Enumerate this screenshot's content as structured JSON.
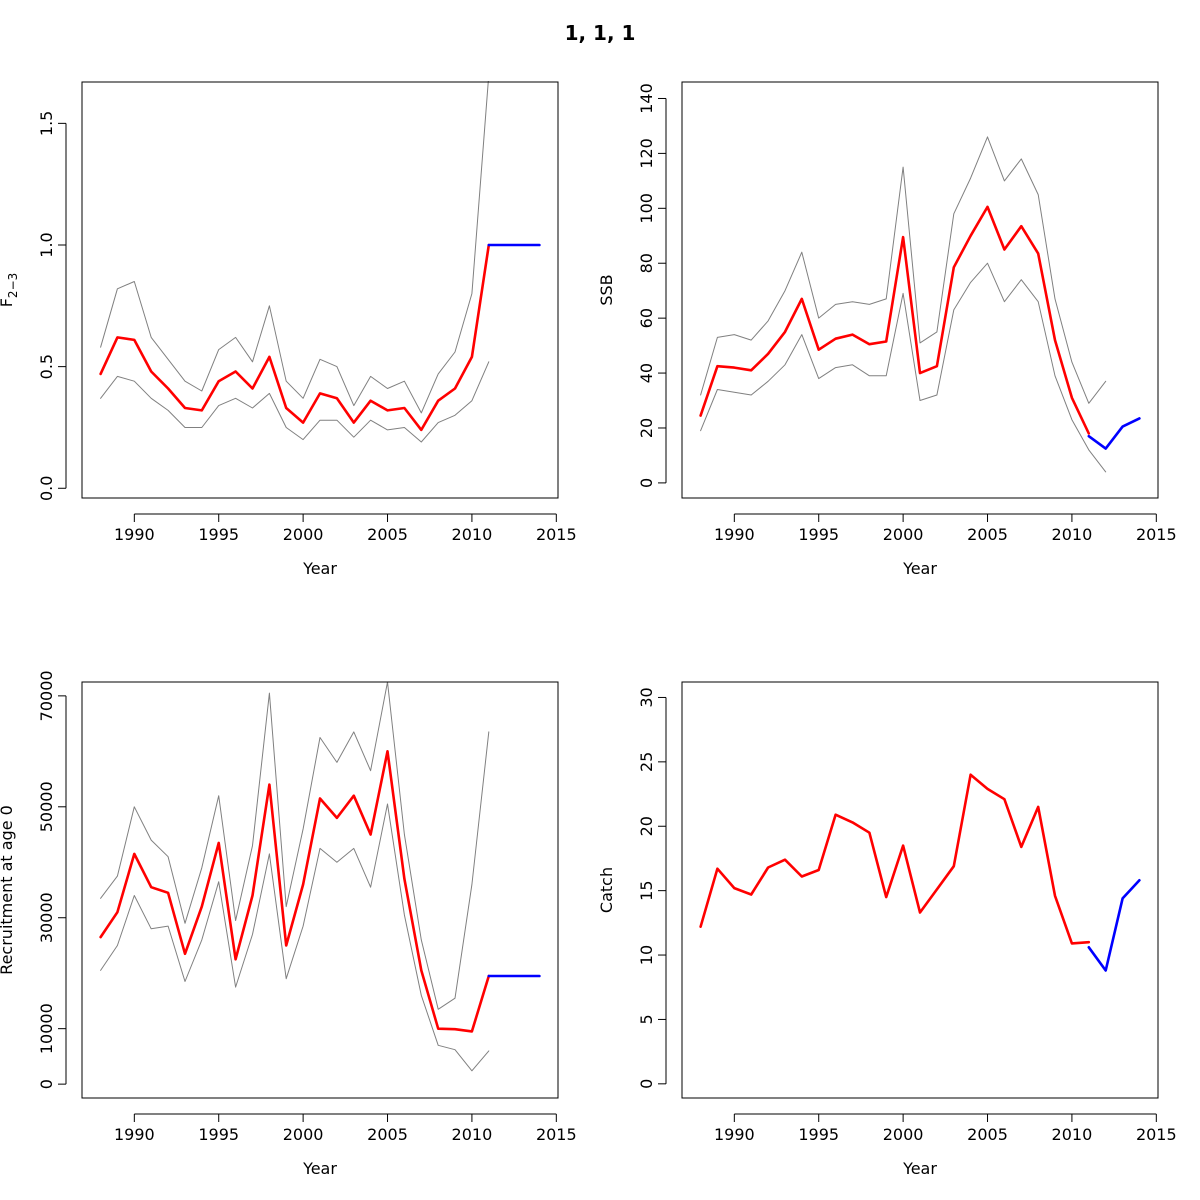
{
  "figure": {
    "title": "1, 1, 1"
  },
  "colors": {
    "estimate": "#ff0000",
    "forecast": "#0000ff",
    "confidence": "#808080",
    "axis": "#000000"
  },
  "chart_data": [
    {
      "id": "fbar",
      "type": "line",
      "xlabel": "Year",
      "ylabel": "F̄2-3",
      "ylabel_main": "F",
      "ylabel_sub": "2−3",
      "xlim": [
        1986.9,
        2015.1
      ],
      "ylim": [
        -0.04,
        1.67
      ],
      "xticks": [
        1990,
        1995,
        2000,
        2005,
        2010,
        2015
      ],
      "yticks": [
        0.0,
        0.5,
        1.0,
        1.5
      ],
      "ytick_labels": [
        "0.0",
        "0.5",
        "1.0",
        "1.5"
      ],
      "series": [
        {
          "role": "upper",
          "x": [
            1988,
            1989,
            1990,
            1991,
            1992,
            1993,
            1994,
            1995,
            1996,
            1997,
            1998,
            1999,
            2000,
            2001,
            2002,
            2003,
            2004,
            2005,
            2006,
            2007,
            2008,
            2009,
            2010,
            2011
          ],
          "values": [
            0.58,
            0.82,
            0.85,
            0.62,
            0.53,
            0.44,
            0.4,
            0.57,
            0.62,
            0.52,
            0.75,
            0.44,
            0.37,
            0.53,
            0.5,
            0.34,
            0.46,
            0.41,
            0.44,
            0.31,
            0.47,
            0.56,
            0.8,
            1.7
          ]
        },
        {
          "role": "lower",
          "x": [
            1988,
            1989,
            1990,
            1991,
            1992,
            1993,
            1994,
            1995,
            1996,
            1997,
            1998,
            1999,
            2000,
            2001,
            2002,
            2003,
            2004,
            2005,
            2006,
            2007,
            2008,
            2009,
            2010,
            2011
          ],
          "values": [
            0.37,
            0.46,
            0.44,
            0.37,
            0.32,
            0.25,
            0.25,
            0.34,
            0.37,
            0.33,
            0.39,
            0.25,
            0.2,
            0.28,
            0.28,
            0.21,
            0.28,
            0.24,
            0.25,
            0.19,
            0.27,
            0.3,
            0.36,
            0.52
          ]
        },
        {
          "role": "estimate",
          "x": [
            1988,
            1989,
            1990,
            1991,
            1992,
            1993,
            1994,
            1995,
            1996,
            1997,
            1998,
            1999,
            2000,
            2001,
            2002,
            2003,
            2004,
            2005,
            2006,
            2007,
            2008,
            2009,
            2010,
            2011
          ],
          "values": [
            0.47,
            0.62,
            0.61,
            0.48,
            0.41,
            0.33,
            0.32,
            0.44,
            0.48,
            0.41,
            0.54,
            0.33,
            0.27,
            0.39,
            0.37,
            0.27,
            0.36,
            0.32,
            0.33,
            0.24,
            0.36,
            0.41,
            0.54,
            1.0
          ]
        },
        {
          "role": "forecast",
          "x": [
            2011,
            2012,
            2013,
            2014
          ],
          "values": [
            1.0,
            1.0,
            1.0,
            1.0
          ]
        }
      ]
    },
    {
      "id": "ssb",
      "type": "line",
      "xlabel": "Year",
      "ylabel": "SSB",
      "xlim": [
        1986.9,
        2015.1
      ],
      "ylim": [
        -5.5,
        146
      ],
      "xticks": [
        1990,
        1995,
        2000,
        2005,
        2010,
        2015
      ],
      "yticks": [
        0,
        20,
        40,
        60,
        80,
        100,
        120,
        140
      ],
      "ytick_labels": [
        "0",
        "20",
        "40",
        "60",
        "80",
        "100",
        "120",
        "140"
      ],
      "series": [
        {
          "role": "upper",
          "x": [
            1988,
            1989,
            1990,
            1991,
            1992,
            1993,
            1994,
            1995,
            1996,
            1997,
            1998,
            1999,
            2000,
            2001,
            2002,
            2003,
            2004,
            2005,
            2006,
            2007,
            2008,
            2009,
            2010,
            2011,
            2012
          ],
          "values": [
            32,
            53,
            54,
            52,
            59,
            70,
            84,
            60,
            65,
            66,
            65,
            67,
            115,
            51,
            55,
            98,
            111,
            126,
            110,
            118,
            105,
            67,
            44,
            29,
            37
          ]
        },
        {
          "role": "lower",
          "x": [
            1988,
            1989,
            1990,
            1991,
            1992,
            1993,
            1994,
            1995,
            1996,
            1997,
            1998,
            1999,
            2000,
            2001,
            2002,
            2003,
            2004,
            2005,
            2006,
            2007,
            2008,
            2009,
            2010,
            2011,
            2012
          ],
          "values": [
            19,
            34,
            33,
            32,
            37,
            43,
            54,
            38,
            42,
            43,
            39,
            39,
            69,
            30,
            32,
            63,
            73,
            80,
            66,
            74,
            66,
            39,
            23,
            12,
            4
          ]
        },
        {
          "role": "estimate",
          "x": [
            1988,
            1989,
            1990,
            1991,
            1992,
            1993,
            1994,
            1995,
            1996,
            1997,
            1998,
            1999,
            2000,
            2001,
            2002,
            2003,
            2004,
            2005,
            2006,
            2007,
            2008,
            2009,
            2010,
            2011
          ],
          "values": [
            24.5,
            42.5,
            42,
            41,
            47,
            55,
            67,
            48.5,
            52.5,
            54,
            50.5,
            51.5,
            89.5,
            40,
            42.5,
            78.5,
            90,
            100.5,
            85,
            93.5,
            83.5,
            52,
            31,
            18
          ]
        },
        {
          "role": "forecast",
          "x": [
            2011,
            2012,
            2013,
            2014
          ],
          "values": [
            17,
            12.5,
            20.5,
            23.5
          ]
        }
      ]
    },
    {
      "id": "recruitment",
      "type": "line",
      "xlabel": "Year",
      "ylabel": "Recruitment at age 0",
      "xlim": [
        1986.9,
        2015.1
      ],
      "ylim": [
        -2500,
        72500
      ],
      "xticks": [
        1990,
        1995,
        2000,
        2005,
        2010,
        2015
      ],
      "yticks": [
        0,
        10000,
        30000,
        50000,
        70000
      ],
      "ytick_labels": [
        "0",
        "10000",
        "30000",
        "50000",
        "70000"
      ],
      "series": [
        {
          "role": "upper",
          "x": [
            1988,
            1989,
            1990,
            1991,
            1992,
            1993,
            1994,
            1995,
            1996,
            1997,
            1998,
            1999,
            2000,
            2001,
            2002,
            2003,
            2004,
            2005,
            2006,
            2007,
            2008,
            2009,
            2010,
            2011
          ],
          "values": [
            33500,
            37500,
            50000,
            44000,
            41000,
            29000,
            39000,
            52000,
            29500,
            43000,
            70500,
            32000,
            46000,
            62500,
            58000,
            63500,
            56500,
            72500,
            45000,
            26000,
            13500,
            15500,
            36000,
            63500
          ]
        },
        {
          "role": "lower",
          "x": [
            1988,
            1989,
            1990,
            1991,
            1992,
            1993,
            1994,
            1995,
            1996,
            1997,
            1998,
            1999,
            2000,
            2001,
            2002,
            2003,
            2004,
            2005,
            2006,
            2007,
            2008,
            2009,
            2010,
            2011
          ],
          "values": [
            20500,
            25000,
            34000,
            28000,
            28500,
            18500,
            26000,
            36500,
            17500,
            27000,
            41500,
            19000,
            28500,
            42500,
            40000,
            42500,
            35500,
            50500,
            30500,
            16000,
            7000,
            6200,
            2400,
            6000
          ]
        },
        {
          "role": "estimate",
          "x": [
            1988,
            1989,
            1990,
            1991,
            1992,
            1993,
            1994,
            1995,
            1996,
            1997,
            1998,
            1999,
            2000,
            2001,
            2002,
            2003,
            2004,
            2005,
            2006,
            2007,
            2008,
            2009,
            2010,
            2011
          ],
          "values": [
            26500,
            31000,
            41500,
            35500,
            34500,
            23500,
            32000,
            43500,
            22500,
            34000,
            54000,
            25000,
            36000,
            51500,
            48000,
            52000,
            45000,
            60000,
            37000,
            20500,
            10000,
            9900,
            9500,
            19500
          ]
        },
        {
          "role": "forecast",
          "x": [
            2011,
            2012,
            2013,
            2014
          ],
          "values": [
            19500,
            19500,
            19500,
            19500
          ]
        }
      ]
    },
    {
      "id": "catch",
      "type": "line",
      "xlabel": "Year",
      "ylabel": "Catch",
      "xlim": [
        1986.9,
        2015.1
      ],
      "ylim": [
        -1.1,
        31.2
      ],
      "xticks": [
        1990,
        1995,
        2000,
        2005,
        2010,
        2015
      ],
      "yticks": [
        0,
        5,
        10,
        15,
        20,
        25,
        30
      ],
      "ytick_labels": [
        "0",
        "5",
        "10",
        "15",
        "20",
        "25",
        "30"
      ],
      "series": [
        {
          "role": "estimate",
          "x": [
            1988,
            1989,
            1990,
            1991,
            1992,
            1993,
            1994,
            1995,
            1996,
            1997,
            1998,
            1999,
            2000,
            2001,
            2002,
            2003,
            2004,
            2005,
            2006,
            2007,
            2008,
            2009,
            2010,
            2011
          ],
          "values": [
            12.2,
            16.7,
            15.2,
            14.7,
            16.8,
            17.4,
            16.1,
            16.6,
            20.9,
            20.3,
            19.5,
            14.5,
            18.5,
            13.3,
            15.1,
            16.9,
            24.0,
            22.9,
            22.1,
            18.4,
            21.5,
            14.6,
            10.9,
            11.0
          ]
        },
        {
          "role": "forecast",
          "x": [
            2011,
            2012,
            2013,
            2014
          ],
          "values": [
            10.6,
            8.8,
            14.4,
            15.8
          ]
        }
      ]
    }
  ]
}
